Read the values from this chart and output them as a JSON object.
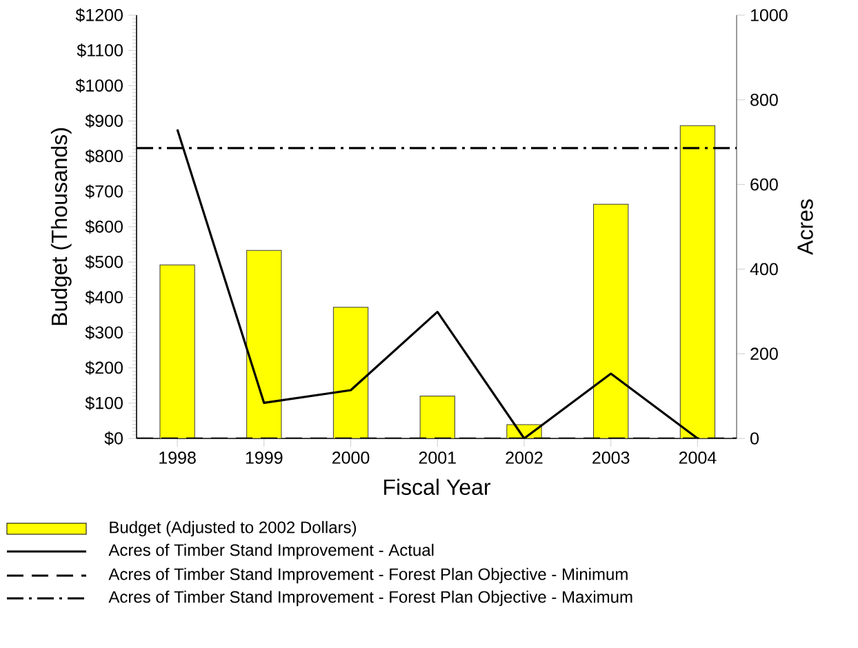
{
  "chart_data": {
    "type": "bar",
    "xlabel": "Fiscal Year",
    "ylabel": "Budget (Thousands)",
    "y2label": "Acres",
    "categories": [
      "1998",
      "1999",
      "2000",
      "2001",
      "2002",
      "2003",
      "2004"
    ],
    "series": [
      {
        "name": "Budget (Adjusted to 2002 Dollars)",
        "color": "#ffff00",
        "values": [
          492,
          533,
          372,
          120,
          39,
          664,
          887
        ]
      },
      {
        "name": "Acres of Timber Stand Improvement - Actual",
        "type": "line",
        "axis": "y2",
        "color": "#000000",
        "line_style": "solid",
        "values": [
          730,
          84,
          114,
          299,
          0,
          153,
          0
        ]
      }
    ],
    "ref_lines": [
      {
        "axis": "y2",
        "value": 0,
        "label": "Acres of Timber Stand Improvement - Forest Plan Objective - Minimum",
        "line_style": "dashed",
        "color": "#000000"
      },
      {
        "axis": "y2",
        "value": 686,
        "label": "Acres of Timber Stand Improvement - Forest Plan Objective - Maximum",
        "line_style": "dashdot",
        "color": "#000000"
      }
    ],
    "ylim": [
      0,
      1200
    ],
    "yticks": [
      {
        "value": 0,
        "label": "$0"
      },
      {
        "value": 100,
        "label": "$100"
      },
      {
        "value": 200,
        "label": "$200"
      },
      {
        "value": 300,
        "label": "$300"
      },
      {
        "value": 400,
        "label": "$400"
      },
      {
        "value": 500,
        "label": "$500"
      },
      {
        "value": 600,
        "label": "$600"
      },
      {
        "value": 700,
        "label": "$700"
      },
      {
        "value": 800,
        "label": "$800"
      },
      {
        "value": 900,
        "label": "$900"
      },
      {
        "value": 1000,
        "label": "$1000"
      },
      {
        "value": 1100,
        "label": "$1100"
      },
      {
        "value": 1200,
        "label": "$1200"
      }
    ],
    "y2lim": [
      0,
      1000
    ],
    "y2ticks": [
      0,
      200,
      400,
      600,
      800,
      1000
    ],
    "legend": "bottom",
    "grid": false
  }
}
